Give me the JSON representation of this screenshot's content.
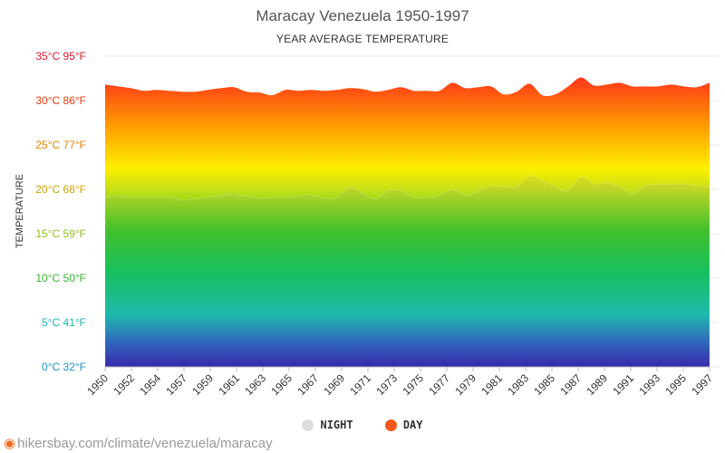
{
  "colors": {
    "night_marker": "#dddddd",
    "day_marker": "#f2581b",
    "source_pin": "#f46a1c"
  },
  "legend": {
    "night_label": "NIGHT",
    "day_label": "DAY"
  },
  "source": {
    "icon": "map-pin-icon",
    "text": "hikersbay.com/climate/venezuela/maracay"
  },
  "chart_data": {
    "type": "area",
    "title": "Maracay Venezuela 1950-1997",
    "subtitle": "YEAR AVERAGE TEMPERATURE",
    "ylabel": "TEMPERATURE",
    "ylim": [
      0,
      35
    ],
    "yticks": [
      {
        "value": 0,
        "label": "0°C 32°F",
        "color": "#1a93c9"
      },
      {
        "value": 5,
        "label": "5°C 41°F",
        "color": "#1bb6b0"
      },
      {
        "value": 10,
        "label": "10°C 50°F",
        "color": "#2fb52a"
      },
      {
        "value": 15,
        "label": "15°C 59°F",
        "color": "#8cbf1a"
      },
      {
        "value": 20,
        "label": "20°C 68°F",
        "color": "#d1a400"
      },
      {
        "value": 25,
        "label": "25°C 77°F",
        "color": "#e58300"
      },
      {
        "value": 30,
        "label": "30°C 86°F",
        "color": "#e83a10"
      },
      {
        "value": 35,
        "label": "35°C 95°F",
        "color": "#e0182a"
      }
    ],
    "x": [
      1950,
      1951,
      1952,
      1953,
      1954,
      1955,
      1956,
      1957,
      1958,
      1959,
      1960,
      1961,
      1962,
      1963,
      1964,
      1965,
      1966,
      1967,
      1968,
      1969,
      1970,
      1971,
      1972,
      1973,
      1974,
      1975,
      1976,
      1977,
      1978,
      1979,
      1980,
      1981,
      1982,
      1983,
      1984,
      1985,
      1986,
      1987,
      1988,
      1989,
      1990,
      1991,
      1992,
      1993,
      1994,
      1995,
      1996,
      1997
    ],
    "xtick_labels": [
      "1950",
      "1952",
      "1954",
      "1957",
      "1959",
      "1961",
      "1963",
      "1965",
      "1967",
      "1969",
      "1971",
      "1973",
      "1975",
      "1977",
      "1979",
      "1981",
      "1983",
      "1985",
      "1987",
      "1989",
      "1991",
      "1993",
      "1995",
      "1997"
    ],
    "series": [
      {
        "name": "DAY",
        "values": [
          31.8,
          31.6,
          31.4,
          31.1,
          31.2,
          31.1,
          31.0,
          31.0,
          31.2,
          31.4,
          31.5,
          31.0,
          30.9,
          30.6,
          31.2,
          31.1,
          31.2,
          31.1,
          31.2,
          31.4,
          31.3,
          31.0,
          31.2,
          31.5,
          31.1,
          31.1,
          31.1,
          32.0,
          31.4,
          31.5,
          31.6,
          30.7,
          31.0,
          31.9,
          30.6,
          30.7,
          31.6,
          32.6,
          31.7,
          31.8,
          32.0,
          31.6,
          31.6,
          31.6,
          31.8,
          31.6,
          31.5,
          32.0
        ]
      },
      {
        "name": "NIGHT",
        "values": [
          19.1,
          19.2,
          19.1,
          19.1,
          19.1,
          19.1,
          18.8,
          18.9,
          19.1,
          19.3,
          19.5,
          19.2,
          19.0,
          19.1,
          19.1,
          19.2,
          19.4,
          19.0,
          19.0,
          20.2,
          19.6,
          18.9,
          19.9,
          19.8,
          19.1,
          19.1,
          19.3,
          20.0,
          19.3,
          19.8,
          20.3,
          20.3,
          20.3,
          21.5,
          21.0,
          20.3,
          19.8,
          21.4,
          20.6,
          20.7,
          20.3,
          19.4,
          20.4,
          20.6,
          20.6,
          20.6,
          20.4,
          20.3
        ]
      }
    ]
  }
}
